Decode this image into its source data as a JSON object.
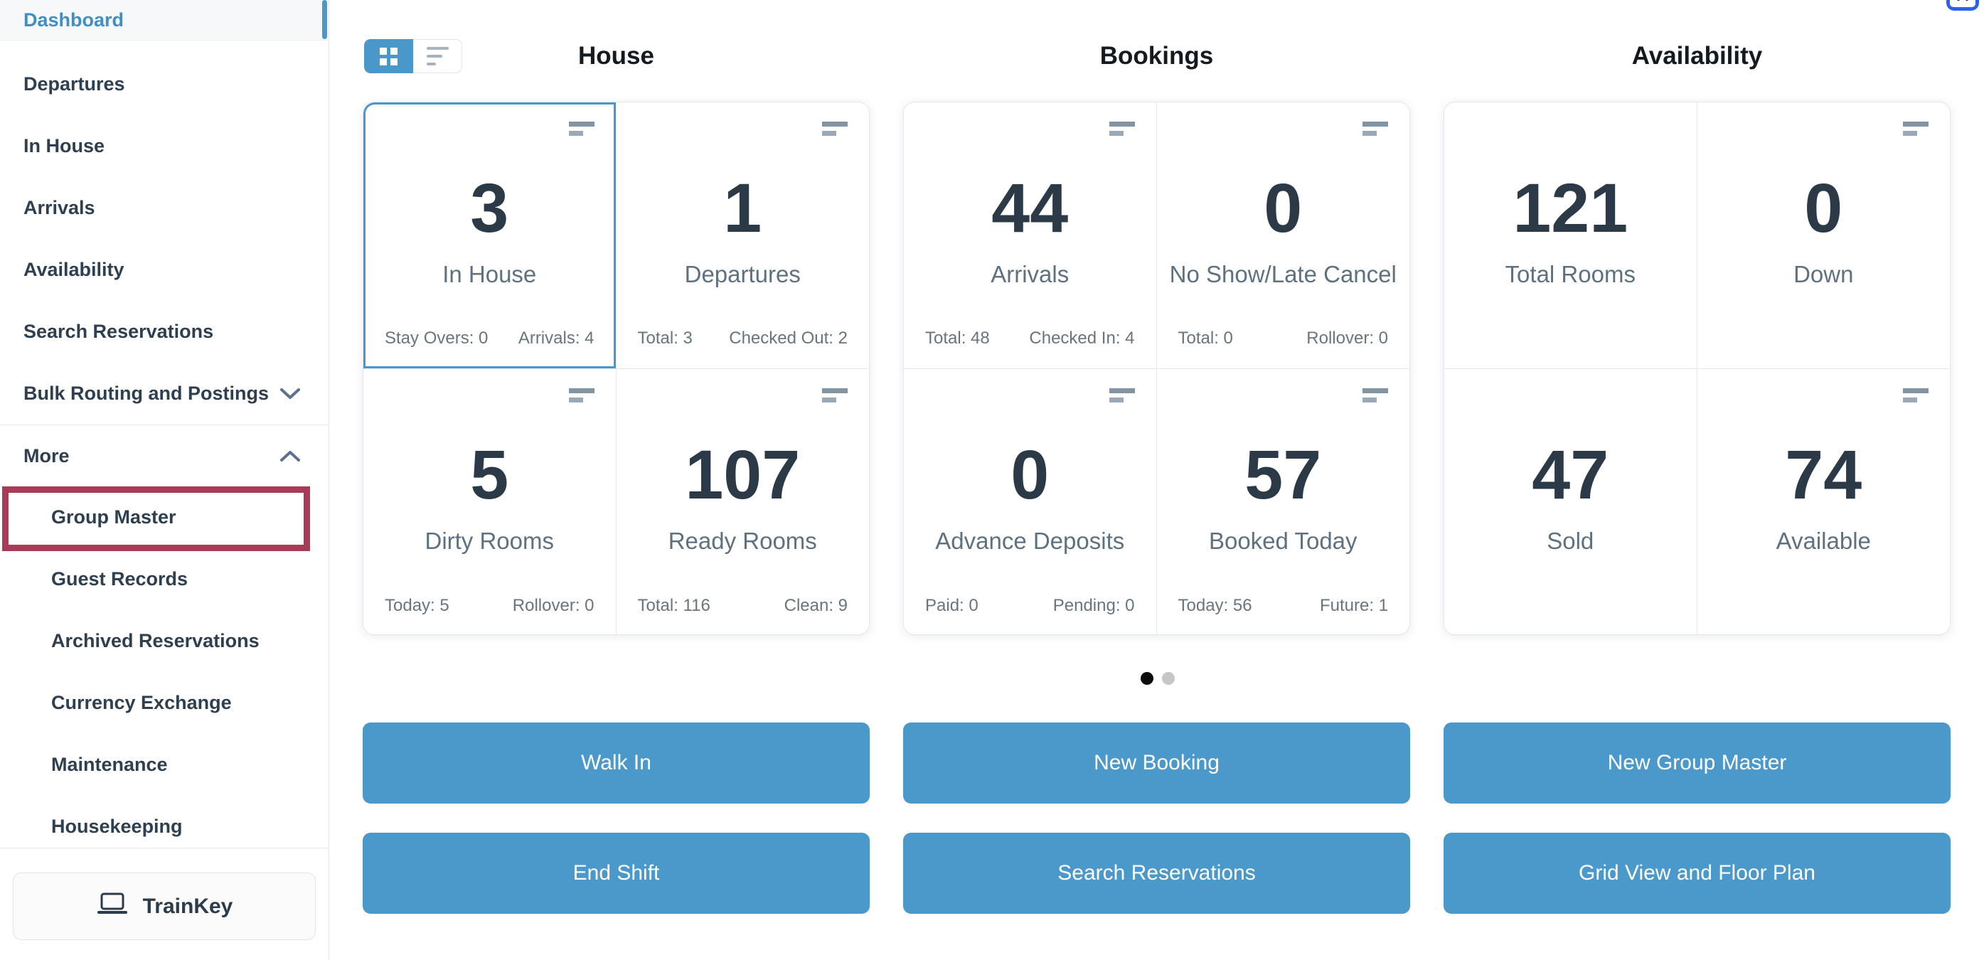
{
  "sidebar": {
    "items": [
      {
        "label": "Dashboard",
        "active": true
      },
      {
        "label": "Departures"
      },
      {
        "label": "In House"
      },
      {
        "label": "Arrivals"
      },
      {
        "label": "Availability"
      },
      {
        "label": "Search Reservations"
      },
      {
        "label": "Bulk Routing and Postings",
        "chevron": "down"
      },
      {
        "label": "More",
        "chevron": "up",
        "divider_above": true
      }
    ],
    "more_items": [
      {
        "label": "Group Master",
        "annotated": true
      },
      {
        "label": "Guest Records"
      },
      {
        "label": "Archived Reservations"
      },
      {
        "label": "Currency Exchange"
      },
      {
        "label": "Maintenance"
      },
      {
        "label": "Housekeeping"
      }
    ],
    "trainkey_label": "TrainKey"
  },
  "view_toggle": {
    "grid_active": true,
    "list_active": false
  },
  "panels": [
    {
      "title": "House",
      "cards": [
        {
          "value": "3",
          "label": "In House",
          "selected": true,
          "icon": true,
          "stats": [
            "Stay Overs: 0",
            "Arrivals: 4"
          ]
        },
        {
          "value": "1",
          "label": "Departures",
          "icon": true,
          "stats": [
            "Total: 3",
            "Checked Out: 2"
          ]
        },
        {
          "value": "5",
          "label": "Dirty Rooms",
          "icon": true,
          "stats": [
            "Today: 5",
            "Rollover: 0"
          ]
        },
        {
          "value": "107",
          "label": "Ready Rooms",
          "icon": true,
          "stats": [
            "Total: 116",
            "Clean: 9"
          ]
        }
      ]
    },
    {
      "title": "Bookings",
      "cards": [
        {
          "value": "44",
          "label": "Arrivals",
          "icon": true,
          "stats": [
            "Total: 48",
            "Checked In: 4"
          ]
        },
        {
          "value": "0",
          "label": "No Show/Late Cancel",
          "icon": true,
          "stats": [
            "Total: 0",
            "Rollover: 0"
          ]
        },
        {
          "value": "0",
          "label": "Advance Deposits",
          "icon": true,
          "stats": [
            "Paid: 0",
            "Pending: 0"
          ]
        },
        {
          "value": "57",
          "label": "Booked Today",
          "icon": true,
          "stats": [
            "Today: 56",
            "Future: 1"
          ]
        }
      ]
    },
    {
      "title": "Availability",
      "cards": [
        {
          "value": "121",
          "label": "Total Rooms",
          "icon": false,
          "stats": []
        },
        {
          "value": "0",
          "label": "Down",
          "icon": true,
          "stats": []
        },
        {
          "value": "47",
          "label": "Sold",
          "icon": false,
          "stats": []
        },
        {
          "value": "74",
          "label": "Available",
          "icon": true,
          "stats": []
        }
      ]
    }
  ],
  "pagination": {
    "total": 2,
    "active_index": 0
  },
  "actions": {
    "rows": [
      [
        "Walk In",
        "New Booking",
        "New Group Master"
      ],
      [
        "End Shift",
        "Search Reservations",
        "Grid View and Floor Plan"
      ]
    ]
  },
  "colors": {
    "accent_blue": "#4a99ca",
    "sidebar_active_blue": "#3d8fc4",
    "number_dark": "#2c3a48",
    "label_gray": "#5e7181",
    "annotation_red": "#a93a58",
    "dot_active": "#0c0c0c",
    "dot_inactive": "#c6c6c6",
    "badge_blue": "#2b62e9"
  }
}
